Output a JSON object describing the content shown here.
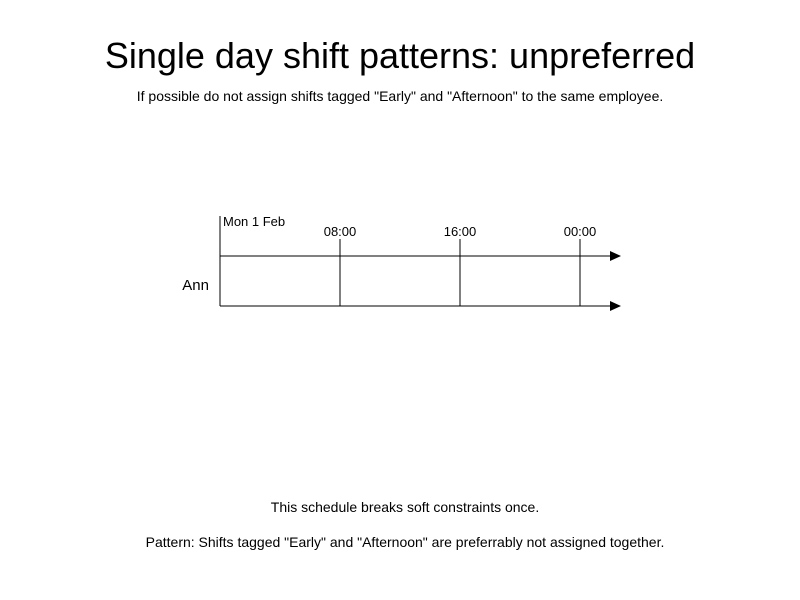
{
  "header": {
    "title": "Single day shift patterns: unpreferred",
    "subtitle": "If possible do not assign shifts tagged \"Early\" and \"Afternoon\" to the same employee."
  },
  "timeline": {
    "date_label": "Mon 1 Feb",
    "time_labels": [
      "08:00",
      "16:00",
      "00:00"
    ],
    "employee": "Ann"
  },
  "footer": {
    "summary": "This schedule breaks soft constraints once.",
    "pattern": "Pattern: Shifts tagged \"Early\" and \"Afternoon\" are preferrably not assigned together."
  }
}
